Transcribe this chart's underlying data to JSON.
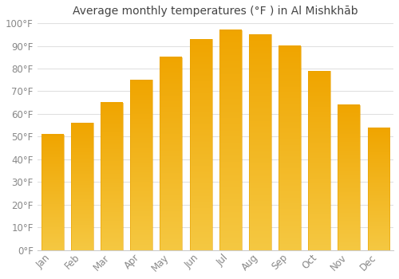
{
  "title": "Average monthly temperatures (°F ) in Al Mishkhāb",
  "months": [
    "Jan",
    "Feb",
    "Mar",
    "Apr",
    "May",
    "Jun",
    "Jul",
    "Aug",
    "Sep",
    "Oct",
    "Nov",
    "Dec"
  ],
  "values": [
    51,
    56,
    65,
    75,
    85,
    93,
    97,
    95,
    90,
    79,
    64,
    54
  ],
  "bar_color_bottom": "#F5C842",
  "bar_color_top": "#F0A500",
  "background_color": "#FFFFFF",
  "grid_color": "#E0E0E0",
  "ylim": [
    0,
    100
  ],
  "yticks": [
    0,
    10,
    20,
    30,
    40,
    50,
    60,
    70,
    80,
    90,
    100
  ],
  "ytick_labels": [
    "0°F",
    "10°F",
    "20°F",
    "30°F",
    "40°F",
    "50°F",
    "60°F",
    "70°F",
    "80°F",
    "90°F",
    "100°F"
  ],
  "title_fontsize": 10,
  "tick_fontsize": 8.5,
  "tick_color": "#888888",
  "bar_width": 0.75
}
